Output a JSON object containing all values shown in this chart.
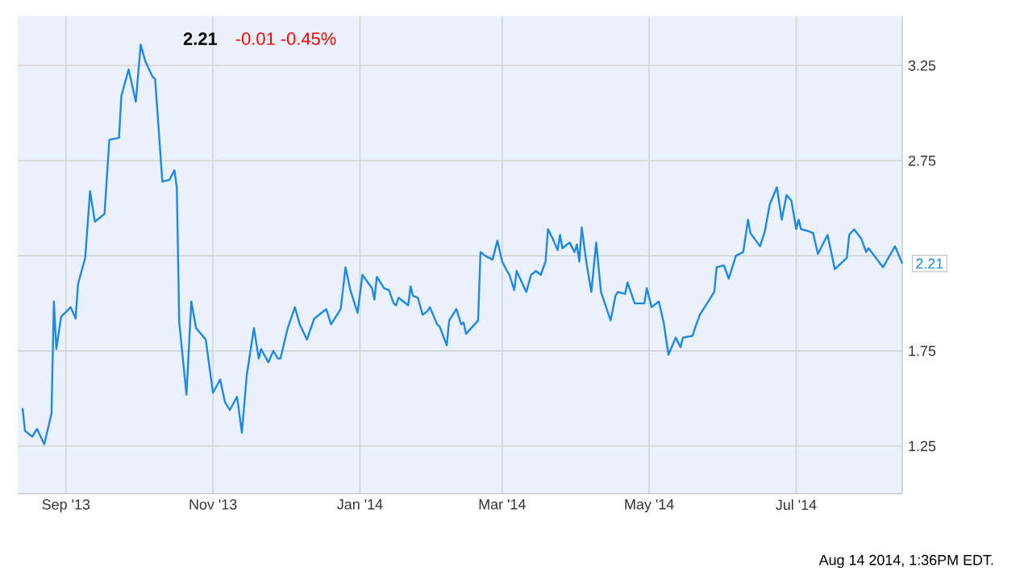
{
  "chart_data": {
    "type": "line",
    "title": "2.21",
    "subtitle": "-0.01  -0.45%",
    "x": [
      "2013-08-14",
      "2013-08-15",
      "2013-08-18",
      "2013-08-20",
      "2013-08-23",
      "2013-08-26",
      "2013-08-27",
      "2013-08-28",
      "2013-08-30",
      "2013-09-03",
      "2013-09-05",
      "2013-09-06",
      "2013-09-09",
      "2013-09-11",
      "2013-09-13",
      "2013-09-17",
      "2013-09-19",
      "2013-09-23",
      "2013-09-24",
      "2013-09-27",
      "2013-09-30",
      "2013-10-02",
      "2013-10-04",
      "2013-10-07",
      "2013-10-08",
      "2013-10-11",
      "2013-10-14",
      "2013-10-16",
      "2013-10-17",
      "2013-10-18",
      "2013-10-21",
      "2013-10-23",
      "2013-10-25",
      "2013-10-29",
      "2013-11-01",
      "2013-11-04",
      "2013-11-06",
      "2013-11-08",
      "2013-11-11",
      "2013-11-13",
      "2013-11-15",
      "2013-11-18",
      "2013-11-20",
      "2013-11-21",
      "2013-11-24",
      "2013-11-26",
      "2013-11-28",
      "2013-11-29",
      "2013-12-02",
      "2013-12-05",
      "2013-12-07",
      "2013-12-10",
      "2013-12-13",
      "2013-12-18",
      "2013-12-20",
      "2013-12-24",
      "2013-12-26",
      "2013-12-28",
      "2013-12-31",
      "2014-01-02",
      "2014-01-06",
      "2014-01-07",
      "2014-01-08",
      "2014-01-11",
      "2014-01-13",
      "2014-01-15",
      "2014-01-16",
      "2014-01-17",
      "2014-01-21",
      "2014-01-22",
      "2014-01-23",
      "2014-01-25",
      "2014-01-27",
      "2014-01-29",
      "2014-01-30",
      "2014-02-02",
      "2014-02-03",
      "2014-02-06",
      "2014-02-07",
      "2014-02-10",
      "2014-02-12",
      "2014-02-13",
      "2014-02-14",
      "2014-02-19",
      "2014-02-20",
      "2014-02-22",
      "2014-02-25",
      "2014-02-27",
      "2014-03-01",
      "2014-03-03",
      "2014-03-04",
      "2014-03-06",
      "2014-03-07",
      "2014-03-11",
      "2014-03-13",
      "2014-03-15",
      "2014-03-17",
      "2014-03-19",
      "2014-03-20",
      "2014-03-22",
      "2014-03-24",
      "2014-03-25",
      "2014-03-26",
      "2014-03-29",
      "2014-03-31",
      "2014-04-01",
      "2014-04-02",
      "2014-04-03",
      "2014-04-05",
      "2014-04-07",
      "2014-04-09",
      "2014-04-11",
      "2014-04-15",
      "2014-04-17",
      "2014-04-18",
      "2014-04-21",
      "2014-04-22",
      "2014-04-25",
      "2014-04-29",
      "2014-04-30",
      "2014-05-02",
      "2014-05-05",
      "2014-05-07",
      "2014-05-09",
      "2014-05-12",
      "2014-05-14",
      "2014-05-15",
      "2014-05-19",
      "2014-05-20",
      "2014-05-22",
      "2014-05-24",
      "2014-05-28",
      "2014-05-29",
      "2014-06-01",
      "2014-06-03",
      "2014-06-06",
      "2014-06-09",
      "2014-06-11",
      "2014-06-12",
      "2014-06-16",
      "2014-06-18",
      "2014-06-20",
      "2014-06-23",
      "2014-06-25",
      "2014-06-27",
      "2014-06-29",
      "2014-07-01",
      "2014-07-02",
      "2014-07-03",
      "2014-07-06",
      "2014-07-08",
      "2014-07-10",
      "2014-07-14",
      "2014-07-17",
      "2014-07-22",
      "2014-07-23",
      "2014-07-25",
      "2014-07-28",
      "2014-07-30",
      "2014-07-31",
      "2014-08-06",
      "2014-08-11",
      "2014-08-14"
    ],
    "series": [
      {
        "color": "#1e88e5",
        "values": [
          1.45,
          1.33,
          1.3,
          1.34,
          1.26,
          1.42,
          2.01,
          1.76,
          1.93,
          1.98,
          1.92,
          2.1,
          2.24,
          2.59,
          2.43,
          2.47,
          2.86,
          2.87,
          3.09,
          3.23,
          3.06,
          3.36,
          3.27,
          3.19,
          3.18,
          2.64,
          2.65,
          2.7,
          2.61,
          1.9,
          1.52,
          2.01,
          1.87,
          1.81,
          1.53,
          1.6,
          1.48,
          1.44,
          1.51,
          1.32,
          1.62,
          1.87,
          1.71,
          1.76,
          1.69,
          1.75,
          1.71,
          1.71,
          1.87,
          1.98,
          1.89,
          1.81,
          1.92,
          1.97,
          1.89,
          1.97,
          2.19,
          2.07,
          1.95,
          2.15,
          2.08,
          2.02,
          2.14,
          2.08,
          2.07,
          2.0,
          1.99,
          2.03,
          1.99,
          2.09,
          2.04,
          2.03,
          1.94,
          1.96,
          1.98,
          1.89,
          1.88,
          1.78,
          1.91,
          1.97,
          1.89,
          1.9,
          1.84,
          1.91,
          2.27,
          2.25,
          2.23,
          2.33,
          2.22,
          2.17,
          2.15,
          2.07,
          2.17,
          2.06,
          2.15,
          2.17,
          2.15,
          2.22,
          2.39,
          2.34,
          2.28,
          2.36,
          2.29,
          2.32,
          2.27,
          2.31,
          2.22,
          2.4,
          2.21,
          2.06,
          2.32,
          2.06,
          1.91,
          2.04,
          2.06,
          2.05,
          2.11,
          2.0,
          2.0,
          2.08,
          1.98,
          2.01,
          1.9,
          1.73,
          1.82,
          1.77,
          1.82,
          1.83,
          1.87,
          1.94,
          1.98,
          2.06,
          2.19,
          2.2,
          2.13,
          2.25,
          2.27,
          2.44,
          2.37,
          2.3,
          2.38,
          2.52,
          2.61,
          2.44,
          2.57,
          2.54,
          2.39,
          2.44,
          2.39,
          2.38,
          2.37,
          2.26,
          2.36,
          2.18,
          2.24,
          2.36,
          2.39,
          2.34,
          2.27,
          2.29,
          2.19,
          2.3,
          2.21
        ]
      }
    ],
    "xlim": [
      "2013-08-12",
      "2014-08-14"
    ],
    "xticks": [
      {
        "value": "2013-09-01",
        "label": "Sep '13"
      },
      {
        "value": "2013-11-01",
        "label": "Nov '13"
      },
      {
        "value": "2014-01-01",
        "label": "Jan '14"
      },
      {
        "value": "2014-03-01",
        "label": "Mar '14"
      },
      {
        "value": "2014-05-01",
        "label": "May '14"
      },
      {
        "value": "2014-07-01",
        "label": "Jul '14"
      }
    ],
    "ylim": [
      1.0,
      3.51
    ],
    "yticks": [
      1.25,
      1.75,
      {
        "value": 2.25,
        "label": null
      },
      2.75,
      3.25
    ],
    "grid": true,
    "annotations": [
      {
        "text": "2.21",
        "x": "2014-08-14",
        "y": 2.21
      },
      "Aug 14 2014, 1:36PM EDT."
    ]
  }
}
